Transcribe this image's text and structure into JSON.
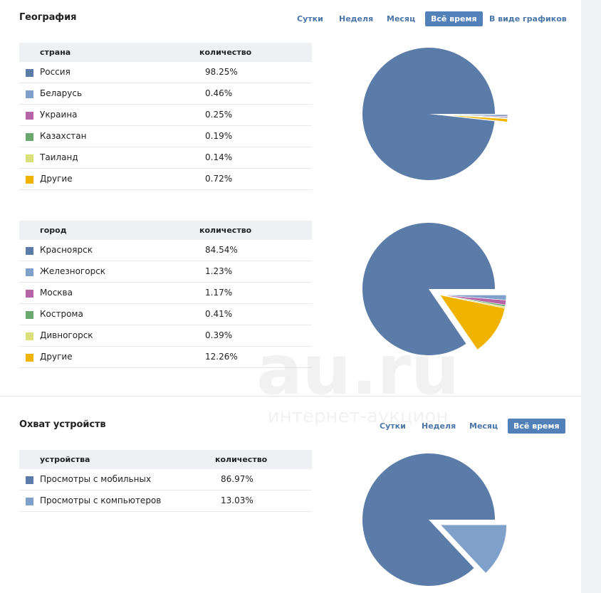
{
  "geography": {
    "title": "География",
    "tabs": [
      {
        "label": "Сутки",
        "active": false
      },
      {
        "label": "Неделя",
        "active": false
      },
      {
        "label": "Месяц",
        "active": false
      },
      {
        "label": "Всё время",
        "active": true
      },
      {
        "label": "В виде графиков",
        "active": false
      }
    ],
    "countries": {
      "col_name": "страна",
      "col_value": "количество",
      "rows": [
        {
          "name": "Россия",
          "value": "98.25%",
          "color": "#5b7ba8"
        },
        {
          "name": "Беларусь",
          "value": "0.46%",
          "color": "#7fa0cb"
        },
        {
          "name": "Украина",
          "value": "0.25%",
          "color": "#b565a7"
        },
        {
          "name": "Казахстан",
          "value": "0.19%",
          "color": "#6aa86f"
        },
        {
          "name": "Таиланд",
          "value": "0.14%",
          "color": "#dce07a"
        },
        {
          "name": "Другие",
          "value": "0.72%",
          "color": "#f0b400"
        }
      ]
    },
    "cities": {
      "col_name": "город",
      "col_value": "количество",
      "rows": [
        {
          "name": "Красноярск",
          "value": "84.54%",
          "color": "#5b7ba8"
        },
        {
          "name": "Железногорск",
          "value": "1.23%",
          "color": "#7fa0cb"
        },
        {
          "name": "Москва",
          "value": "1.17%",
          "color": "#b565a7"
        },
        {
          "name": "Кострома",
          "value": "0.41%",
          "color": "#6aa86f"
        },
        {
          "name": "Дивногорск",
          "value": "0.39%",
          "color": "#dce07a"
        },
        {
          "name": "Другие",
          "value": "12.26%",
          "color": "#f0b400"
        }
      ]
    }
  },
  "devices": {
    "title": "Охват устройств",
    "tabs": [
      {
        "label": "Сутки",
        "active": false
      },
      {
        "label": "Неделя",
        "active": false
      },
      {
        "label": "Месяц",
        "active": false
      },
      {
        "label": "Всё время",
        "active": true
      }
    ],
    "table": {
      "col_name": "устройства",
      "col_value": "количество",
      "rows": [
        {
          "name": "Просмотры с мобильных",
          "value": "86.97%",
          "color": "#5b7ba8"
        },
        {
          "name": "Просмотры с компьютеров",
          "value": "13.03%",
          "color": "#7fa0cb"
        }
      ]
    }
  },
  "watermark": {
    "main": "au.ru",
    "sub": "интернет-аукцион"
  },
  "chart_data": [
    {
      "type": "pie",
      "categories": [
        "Россия",
        "Беларусь",
        "Украина",
        "Казахстан",
        "Таиланд",
        "Другие"
      ],
      "values": [
        98.25,
        0.46,
        0.25,
        0.19,
        0.14,
        0.72
      ],
      "colors": [
        "#5b7ba8",
        "#7fa0cb",
        "#b565a7",
        "#6aa86f",
        "#dce07a",
        "#f0b400"
      ]
    },
    {
      "type": "pie",
      "categories": [
        "Красноярск",
        "Железногорск",
        "Москва",
        "Кострома",
        "Дивногорск",
        "Другие"
      ],
      "values": [
        84.54,
        1.23,
        1.17,
        0.41,
        0.39,
        12.26
      ],
      "colors": [
        "#5b7ba8",
        "#7fa0cb",
        "#b565a7",
        "#6aa86f",
        "#dce07a",
        "#f0b400"
      ]
    },
    {
      "type": "pie",
      "categories": [
        "Просмотры с мобильных",
        "Просмотры с компьютеров"
      ],
      "values": [
        86.97,
        13.03
      ],
      "colors": [
        "#5b7ba8",
        "#7fa0cb"
      ]
    }
  ]
}
